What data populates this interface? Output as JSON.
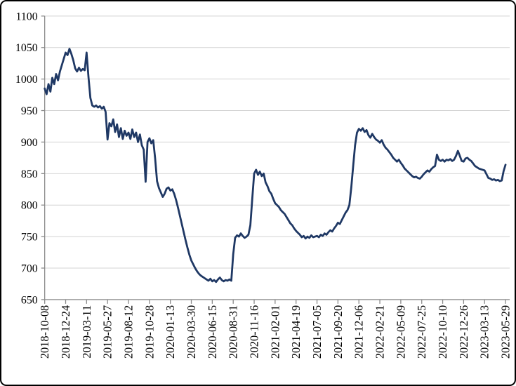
{
  "chart": {
    "background": "#ffffff",
    "frame_border_color": "#000000"
  },
  "chart_data": {
    "type": "line",
    "title": "",
    "xlabel": "",
    "ylabel": "",
    "legend": "none",
    "grid": "horizontal",
    "ylim": [
      650,
      1100
    ],
    "y_tick_step": 50,
    "y_ticks": [
      650,
      700,
      750,
      800,
      850,
      900,
      950,
      1000,
      1050,
      1100
    ],
    "x_start": "2018-10-08",
    "x_end": "2023-05-29",
    "x_interval": "weekly",
    "x_tick_labels": [
      "2018-10-08",
      "2018-12-24",
      "2019-03-11",
      "2019-05-27",
      "2019-08-12",
      "2019-10-28",
      "2020-01-13",
      "2020-03-30",
      "2020-06-15",
      "2020-08-31",
      "2020-11-16",
      "2021-02-01",
      "2021-04-19",
      "2021-07-05",
      "2021-09-20",
      "2021-12-06",
      "2022-02-21",
      "2022-05-09",
      "2022-07-25",
      "2022-10-10",
      "2022-12-26",
      "2023-03-13",
      "2023-05-29"
    ],
    "line_color": "#1f3864",
    "grid_color": "#d3d3d3",
    "axis_color": "#8a8a8a",
    "text_color": "#000000",
    "values": [
      985,
      976,
      992,
      980,
      1002,
      992,
      1008,
      998,
      1012,
      1022,
      1032,
      1042,
      1038,
      1048,
      1040,
      1030,
      1017,
      1012,
      1018,
      1013,
      1016,
      1014,
      1042,
      1003,
      970,
      958,
      956,
      958,
      955,
      957,
      953,
      956,
      948,
      904,
      930,
      925,
      936,
      916,
      928,
      908,
      922,
      905,
      918,
      910,
      915,
      905,
      920,
      908,
      915,
      900,
      912,
      895,
      888,
      837,
      900,
      906,
      898,
      903,
      874,
      838,
      827,
      820,
      813,
      818,
      826,
      828,
      823,
      825,
      818,
      808,
      796,
      783,
      770,
      757,
      744,
      732,
      721,
      712,
      706,
      700,
      695,
      691,
      688,
      686,
      684,
      682,
      680,
      683,
      679,
      681,
      678,
      682,
      685,
      681,
      679,
      681,
      680,
      682,
      680,
      722,
      748,
      752,
      750,
      755,
      751,
      748,
      750,
      753,
      768,
      810,
      850,
      856,
      848,
      853,
      846,
      850,
      836,
      830,
      822,
      818,
      810,
      803,
      800,
      797,
      792,
      789,
      786,
      781,
      776,
      771,
      768,
      763,
      759,
      756,
      753,
      749,
      751,
      747,
      750,
      748,
      752,
      749,
      750,
      751,
      749,
      753,
      751,
      755,
      753,
      757,
      760,
      758,
      763,
      767,
      772,
      770,
      776,
      782,
      788,
      792,
      800,
      828,
      862,
      895,
      915,
      921,
      918,
      922,
      916,
      919,
      911,
      907,
      913,
      908,
      904,
      902,
      899,
      903,
      896,
      891,
      888,
      884,
      880,
      875,
      872,
      869,
      872,
      867,
      863,
      858,
      855,
      852,
      849,
      846,
      844,
      845,
      843,
      842,
      845,
      849,
      852,
      855,
      853,
      857,
      860,
      862,
      880,
      872,
      870,
      872,
      869,
      872,
      871,
      873,
      870,
      872,
      878,
      886,
      878,
      870,
      869,
      874,
      875,
      872,
      870,
      866,
      862,
      860,
      858,
      857,
      856,
      855,
      849,
      843,
      842,
      840,
      841,
      839,
      840,
      838,
      839,
      854,
      864
    ]
  }
}
